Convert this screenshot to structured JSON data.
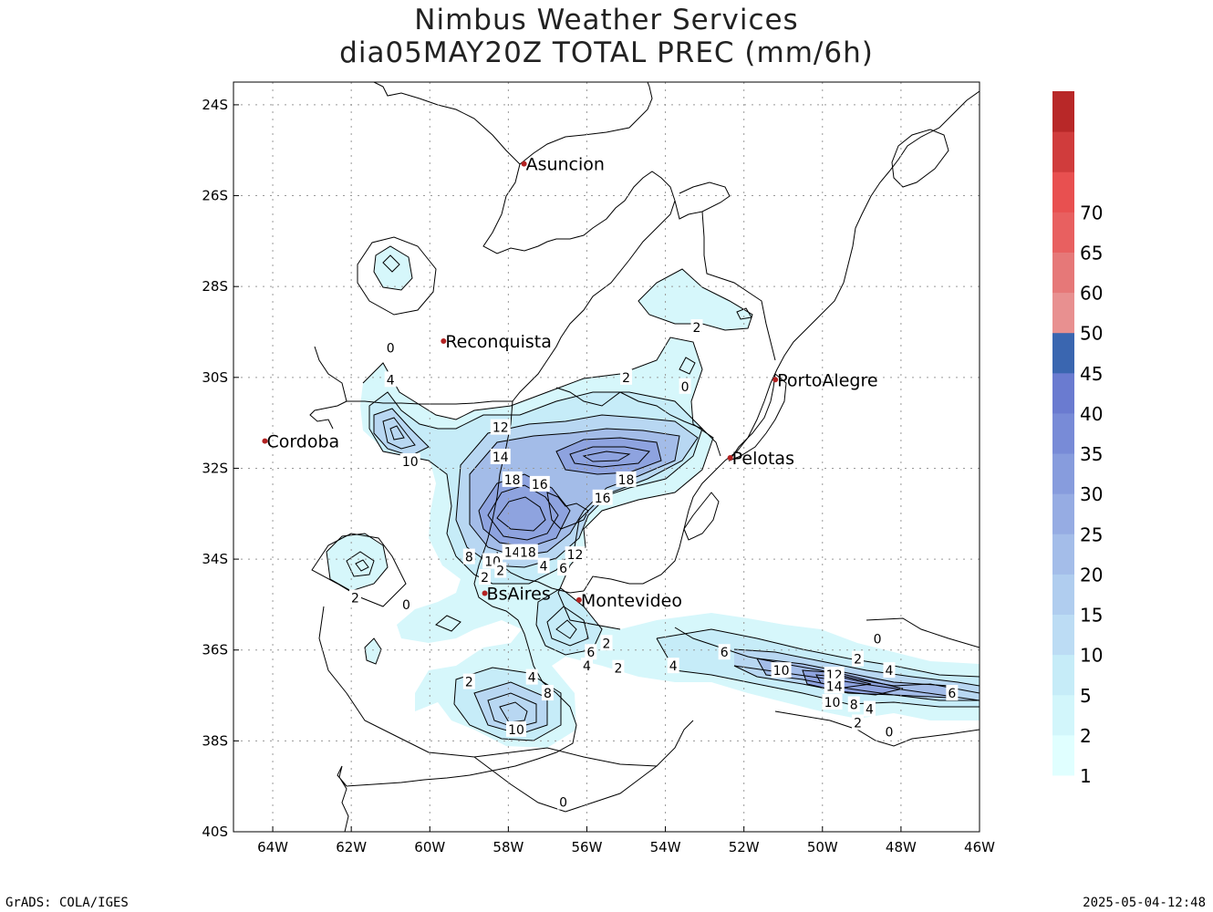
{
  "title_line1": "Nimbus Weather Services",
  "title_line2": "dia05MAY20Z TOTAL PREC (mm/6h)",
  "footer_left": "GrADS: COLA/IGES",
  "footer_right": "2025-05-04-12:48",
  "map": {
    "lon_range": [
      -65,
      -46
    ],
    "lat_range": [
      -40,
      -23.5
    ],
    "lon_ticks": [
      "64W",
      "62W",
      "60W",
      "58W",
      "56W",
      "54W",
      "52W",
      "50W",
      "48W",
      "46W"
    ],
    "lat_ticks": [
      "24S",
      "26S",
      "28S",
      "30S",
      "32S",
      "34S",
      "36S",
      "38S",
      "40S"
    ],
    "grid": true
  },
  "colorbar": {
    "labels": [
      "1",
      "2",
      "5",
      "10",
      "15",
      "20",
      "25",
      "30",
      "35",
      "40",
      "45",
      "50",
      "60",
      "65",
      "70"
    ],
    "colors": [
      "#e0ffff",
      "#d2f6fb",
      "#c6ecf8",
      "#bcdcf4",
      "#b0cdef",
      "#a4bde9",
      "#96ace3",
      "#879cdd",
      "#788bd7",
      "#6a7bd0",
      "#3a66b0",
      "#e89090",
      "#e67878",
      "#e86060",
      "#e85050",
      "#d03c3c",
      "#b82828"
    ]
  },
  "cities": [
    {
      "name": "Asuncion",
      "lon": -57.6,
      "lat": -25.3
    },
    {
      "name": "Reconquista",
      "lon": -59.65,
      "lat": -29.2
    },
    {
      "name": "Cordoba",
      "lon": -64.2,
      "lat": -31.4
    },
    {
      "name": "PortoAlegre",
      "lon": -51.2,
      "lat": -30.05
    },
    {
      "name": "Pelotas",
      "lon": -52.35,
      "lat": -31.77
    },
    {
      "name": "BsAires",
      "lon": -58.6,
      "lat": -34.75
    },
    {
      "name": "Montevideo",
      "lon": -56.2,
      "lat": -34.9
    }
  ],
  "contour_labels": [
    {
      "text": "0",
      "lon": -61.0,
      "lat": -29.35
    },
    {
      "text": "4",
      "lon": -61.0,
      "lat": -30.05
    },
    {
      "text": "10",
      "lon": -60.5,
      "lat": -31.85
    },
    {
      "text": "2",
      "lon": -55.0,
      "lat": -30.0
    },
    {
      "text": "0",
      "lon": -53.5,
      "lat": -30.2
    },
    {
      "text": "2",
      "lon": -53.2,
      "lat": -28.9
    },
    {
      "text": "12",
      "lon": -58.2,
      "lat": -31.1
    },
    {
      "text": "14",
      "lon": -58.2,
      "lat": -31.75
    },
    {
      "text": "18",
      "lon": -57.9,
      "lat": -32.25
    },
    {
      "text": "16",
      "lon": -57.2,
      "lat": -32.35
    },
    {
      "text": "18",
      "lon": -55.0,
      "lat": -32.25
    },
    {
      "text": "16",
      "lon": -55.6,
      "lat": -32.65
    },
    {
      "text": "8",
      "lon": -59.0,
      "lat": -33.95
    },
    {
      "text": "10",
      "lon": -58.4,
      "lat": -34.05
    },
    {
      "text": "14",
      "lon": -57.9,
      "lat": -33.85
    },
    {
      "text": "18",
      "lon": -57.5,
      "lat": -33.85
    },
    {
      "text": "12",
      "lon": -56.3,
      "lat": -33.9
    },
    {
      "text": "2",
      "lon": -58.2,
      "lat": -34.25
    },
    {
      "text": "4",
      "lon": -57.1,
      "lat": -34.15
    },
    {
      "text": "6",
      "lon": -56.6,
      "lat": -34.2
    },
    {
      "text": "2",
      "lon": -58.6,
      "lat": -34.4
    },
    {
      "text": "2",
      "lon": -61.9,
      "lat": -34.85
    },
    {
      "text": "0",
      "lon": -60.6,
      "lat": -35.0
    },
    {
      "text": "6",
      "lon": -55.9,
      "lat": -36.05
    },
    {
      "text": "2",
      "lon": -55.5,
      "lat": -35.85
    },
    {
      "text": "4",
      "lon": -56.0,
      "lat": -36.35
    },
    {
      "text": "2",
      "lon": -55.2,
      "lat": -36.4
    },
    {
      "text": "4",
      "lon": -53.8,
      "lat": -36.35
    },
    {
      "text": "6",
      "lon": -52.5,
      "lat": -36.05
    },
    {
      "text": "10",
      "lon": -51.05,
      "lat": -36.45
    },
    {
      "text": "2",
      "lon": -49.1,
      "lat": -36.2
    },
    {
      "text": "0",
      "lon": -48.6,
      "lat": -35.75
    },
    {
      "text": "4",
      "lon": -48.3,
      "lat": -36.45
    },
    {
      "text": "12",
      "lon": -49.7,
      "lat": -36.55
    },
    {
      "text": "14",
      "lon": -49.7,
      "lat": -36.8
    },
    {
      "text": "10",
      "lon": -49.75,
      "lat": -37.15
    },
    {
      "text": "8",
      "lon": -49.2,
      "lat": -37.2
    },
    {
      "text": "4",
      "lon": -48.8,
      "lat": -37.3
    },
    {
      "text": "2",
      "lon": -49.1,
      "lat": -37.6
    },
    {
      "text": "0",
      "lon": -48.3,
      "lat": -37.8
    },
    {
      "text": "6",
      "lon": -46.7,
      "lat": -36.95
    },
    {
      "text": "2",
      "lon": -59.0,
      "lat": -36.7
    },
    {
      "text": "4",
      "lon": -57.4,
      "lat": -36.6
    },
    {
      "text": "8",
      "lon": -57.0,
      "lat": -36.95
    },
    {
      "text": "10",
      "lon": -57.8,
      "lat": -37.75
    },
    {
      "text": "0",
      "lon": -56.6,
      "lat": -39.35
    }
  ]
}
